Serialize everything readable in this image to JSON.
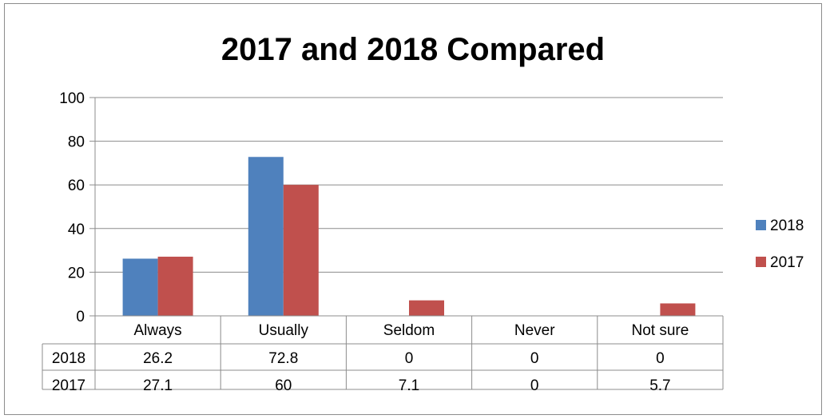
{
  "chart_data": {
    "type": "bar",
    "title": "2017 and 2018 Compared",
    "categories": [
      "Always",
      "Usually",
      "Seldom",
      "Never",
      "Not sure"
    ],
    "series": [
      {
        "name": "2018",
        "values": [
          26.2,
          72.8,
          0,
          0,
          0
        ],
        "color": "#4f81bd"
      },
      {
        "name": "2017",
        "values": [
          27.1,
          60,
          7.1,
          0,
          5.7
        ],
        "color": "#c0504d"
      }
    ],
    "table": {
      "rows": [
        {
          "label": "2018",
          "cells": [
            "26.2",
            "72.8",
            "0",
            "0",
            "0"
          ]
        },
        {
          "label": "2017",
          "cells": [
            "27.1",
            "60",
            "7.1",
            "0",
            "5.7"
          ]
        }
      ]
    },
    "ylim": [
      0,
      100
    ],
    "yticks": [
      0,
      20,
      40,
      60,
      80,
      100
    ],
    "grid": true,
    "legend_position": "right",
    "data_table": true
  }
}
